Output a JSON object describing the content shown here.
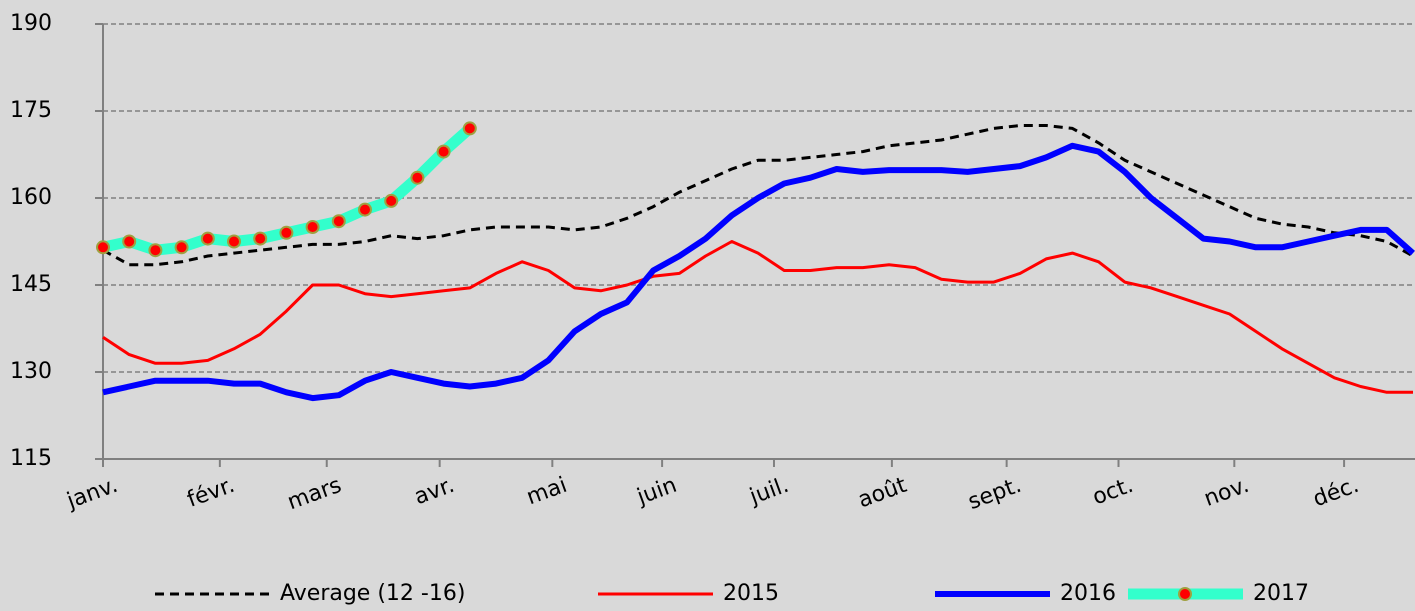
{
  "chart_data": {
    "type": "line",
    "x": [
      0,
      1,
      2,
      3,
      4,
      5,
      6,
      7,
      8,
      9,
      10,
      11,
      12,
      13,
      14,
      15,
      16,
      17,
      18,
      19,
      20,
      21,
      22,
      23,
      24,
      25,
      26,
      27,
      28,
      29,
      30,
      31,
      32,
      33,
      34,
      35,
      36,
      37,
      38,
      39,
      40,
      41,
      42,
      43,
      44,
      45,
      46,
      47,
      48,
      49,
      50
    ],
    "xlim": [
      0,
      50
    ],
    "xticks": [
      {
        "value": 0,
        "label": "janv."
      },
      {
        "value": 4.46,
        "label": "févr."
      },
      {
        "value": 8.54,
        "label": "mars"
      },
      {
        "value": 12.85,
        "label": "avr."
      },
      {
        "value": 17.15,
        "label": "mai"
      },
      {
        "value": 21.34,
        "label": "juin"
      },
      {
        "value": 25.61,
        "label": "juil."
      },
      {
        "value": 30.11,
        "label": "août"
      },
      {
        "value": 34.49,
        "label": "sept."
      },
      {
        "value": 38.76,
        "label": "oct."
      },
      {
        "value": 43.18,
        "label": "nov."
      },
      {
        "value": 47.37,
        "label": "déc."
      }
    ],
    "ylim": [
      115,
      190
    ],
    "yticks": [
      115,
      130,
      145,
      160,
      175,
      190
    ],
    "grid": true,
    "legend": "bottom",
    "series": [
      {
        "name": "Average (12 -16)",
        "color": "#000000",
        "line_style": "dashed",
        "values": [
          151,
          148.5,
          148.5,
          149,
          150,
          150.5,
          151,
          151.5,
          152,
          152,
          152.5,
          153.5,
          153,
          153.5,
          154.5,
          155,
          155,
          155,
          154.5,
          155,
          156.5,
          158.5,
          161,
          163,
          165,
          166.5,
          166.5,
          167,
          167.5,
          168,
          169,
          169.5,
          170,
          171,
          172,
          172.5,
          172.5,
          172,
          169.5,
          166.5,
          164.5,
          162.5,
          160.5,
          158.5,
          156.5,
          155.5,
          155,
          154,
          153.5,
          152.5,
          150
        ]
      },
      {
        "name": "2015",
        "color": "#ff0000",
        "line_style": "solid",
        "values": [
          136,
          133,
          131.5,
          131.5,
          132,
          134,
          136.5,
          140.5,
          145,
          145,
          143.5,
          143,
          143.5,
          144,
          144.5,
          147,
          149,
          147.5,
          144.5,
          144,
          145,
          146.5,
          147,
          150,
          152.5,
          150.5,
          147.5,
          147.5,
          148,
          148,
          148.5,
          148,
          146,
          145.5,
          145.5,
          147,
          149.5,
          150.5,
          149,
          145.5,
          144.5,
          143,
          141.5,
          140,
          137,
          134,
          131.5,
          129,
          127.5,
          126.5,
          126.5
        ]
      },
      {
        "name": "2016",
        "color": "#0000ff",
        "line_style": "solid",
        "values": [
          126.5,
          127.5,
          128.5,
          128.5,
          128.5,
          128,
          128,
          126.5,
          125.5,
          126,
          128.5,
          130,
          129,
          128,
          127.5,
          128,
          129,
          132,
          137,
          140,
          142,
          147.5,
          150,
          153,
          157,
          160,
          162.5,
          163.5,
          165,
          164.5,
          164.8,
          164.8,
          164.8,
          164.5,
          165,
          165.5,
          167,
          169,
          168,
          164.5,
          160,
          156.5,
          153,
          152.5,
          151.5,
          151.5,
          152.5,
          153.5,
          154.5,
          154.5,
          150.5
        ]
      },
      {
        "name": "2017",
        "color": "#33ffcc",
        "line_style": "solid",
        "marker_color": "#ff0000",
        "values": [
          151.5,
          152.5,
          151,
          151.5,
          153,
          152.5,
          153,
          154,
          155,
          156,
          158,
          159.5,
          163.5,
          168,
          172,
          null,
          null,
          null,
          null,
          null,
          null,
          null,
          null,
          null,
          null,
          null,
          null,
          null,
          null,
          null,
          null,
          null,
          null,
          null,
          null,
          null,
          null,
          null,
          null,
          null,
          null,
          null,
          null,
          null,
          null,
          null,
          null,
          null,
          null,
          null,
          null
        ]
      }
    ]
  }
}
